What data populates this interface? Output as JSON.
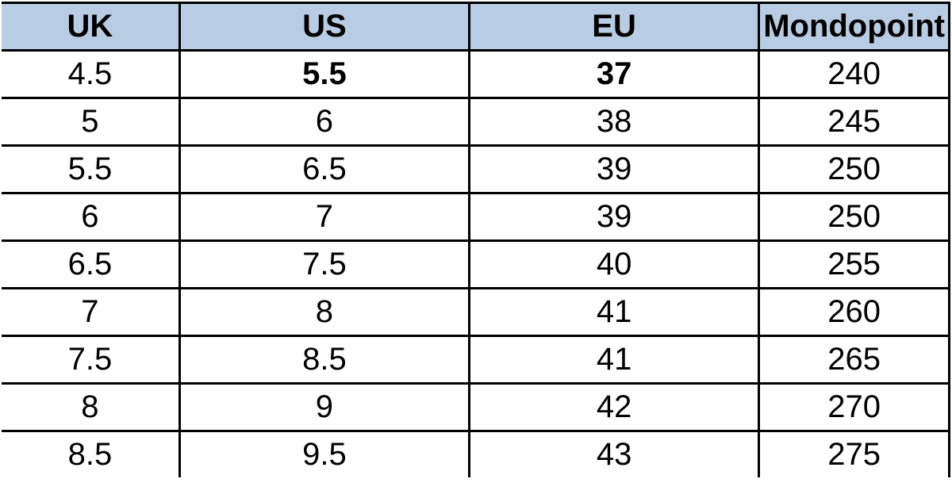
{
  "table": {
    "header_bg_color": "#b8cce4",
    "border_color": "#000000",
    "font_family": "Arial",
    "header_font_size": 40,
    "cell_font_size": 40,
    "columns": [
      {
        "label": "UK",
        "width_pct": 19
      },
      {
        "label": "US",
        "width_pct": 31
      },
      {
        "label": "EU",
        "width_pct": 31
      },
      {
        "label": "Mondopoint",
        "width_pct": 19
      }
    ],
    "rows": [
      {
        "cells": [
          "4.5",
          "5.5",
          "37",
          "240"
        ],
        "bold_cols": [
          1,
          2
        ]
      },
      {
        "cells": [
          "5",
          "6",
          "38",
          "245"
        ],
        "bold_cols": []
      },
      {
        "cells": [
          "5.5",
          "6.5",
          "39",
          "250"
        ],
        "bold_cols": []
      },
      {
        "cells": [
          "6",
          "7",
          "39",
          "250"
        ],
        "bold_cols": []
      },
      {
        "cells": [
          "6.5",
          "7.5",
          "40",
          "255"
        ],
        "bold_cols": []
      },
      {
        "cells": [
          "7",
          "8",
          "41",
          "260"
        ],
        "bold_cols": []
      },
      {
        "cells": [
          "7.5",
          "8.5",
          "41",
          "265"
        ],
        "bold_cols": []
      },
      {
        "cells": [
          "8",
          "9",
          "42",
          "270"
        ],
        "bold_cols": []
      },
      {
        "cells": [
          "8.5",
          "9.5",
          "43",
          "275"
        ],
        "bold_cols": []
      }
    ]
  }
}
